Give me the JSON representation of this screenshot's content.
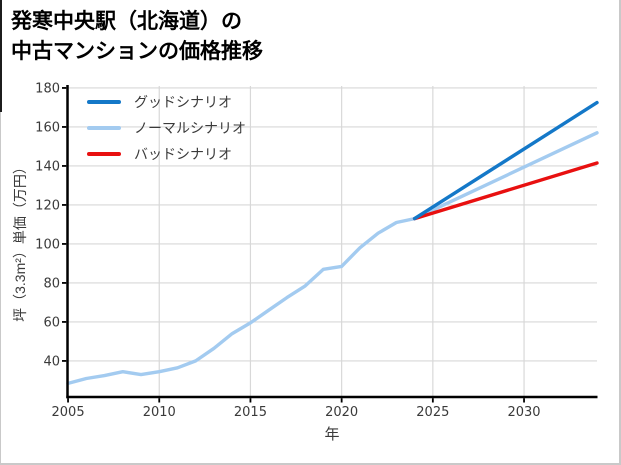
{
  "header": {
    "title_line1": "発寒中央駅（北海道）の",
    "title_line2": "中古マンションの価格推移"
  },
  "chart_data": {
    "type": "line",
    "title": "発寒中央駅（北海道）の中古マンションの価格推移",
    "xlabel": "年",
    "ylabel": "坪（3.3m²）単価（万円）",
    "xlim": [
      2004.97,
      2034
    ],
    "ylim": [
      21.5,
      181
    ],
    "x_ticks": [
      2005,
      2010,
      2015,
      2020,
      2025,
      2030
    ],
    "y_ticks": [
      40,
      60,
      80,
      100,
      120,
      140,
      160,
      180
    ],
    "grid": true,
    "legend_position": "upper-left",
    "forecast_start_x": 2024,
    "colors": {
      "good": "#1478c8",
      "normal": "#a3cbf0",
      "bad": "#e81010",
      "grid": "#d8d8d8",
      "spine": "#000000",
      "tick_text": "#3a3a3a"
    },
    "series": [
      {
        "key": "normal",
        "name": "ノーマルシナリオ",
        "color": "#a3cbf0",
        "x": [
          2005,
          2006,
          2007,
          2008,
          2009,
          2010,
          2011,
          2012,
          2013,
          2014,
          2015,
          2016,
          2017,
          2018,
          2019,
          2020,
          2021,
          2022,
          2023,
          2024,
          2034
        ],
        "y": [
          28.5,
          31,
          32.5,
          34.5,
          33,
          34.5,
          36.5,
          40,
          46.5,
          54,
          59.5,
          66,
          72.5,
          78.5,
          87,
          88.5,
          98,
          105.5,
          111,
          113,
          157
        ]
      },
      {
        "key": "bad",
        "name": "バッドシナリオ",
        "color": "#e81010",
        "x": [
          2024,
          2034
        ],
        "y": [
          113,
          141.5
        ]
      },
      {
        "key": "good",
        "name": "グッドシナリオ",
        "color": "#1478c8",
        "x": [
          2024,
          2034
        ],
        "y": [
          113,
          172.5
        ]
      }
    ],
    "legend": [
      {
        "key": "good",
        "label": "グッドシナリオ",
        "color": "#1478c8"
      },
      {
        "key": "normal",
        "label": "ノーマルシナリオ",
        "color": "#a3cbf0"
      },
      {
        "key": "bad",
        "label": "バッドシナリオ",
        "color": "#e81010"
      }
    ]
  }
}
